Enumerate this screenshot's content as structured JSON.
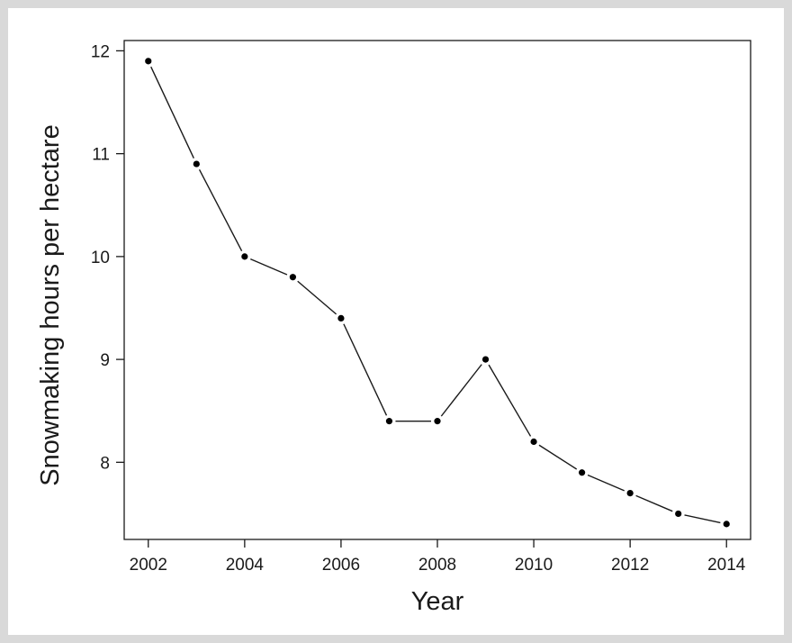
{
  "chart_data": {
    "type": "line",
    "title": "",
    "xlabel": "Year",
    "ylabel": "Snowmaking hours per hectare",
    "xlim": [
      2001.5,
      2014.5
    ],
    "ylim": [
      7.25,
      12.1
    ],
    "x_ticks": [
      2002,
      2004,
      2006,
      2008,
      2010,
      2012,
      2014
    ],
    "y_ticks": [
      8,
      9,
      10,
      11,
      12
    ],
    "grid": false,
    "legend": "none",
    "series": [
      {
        "x": [
          2002,
          2003,
          2004,
          2005,
          2006,
          2007,
          2008,
          2009,
          2010,
          2011,
          2012,
          2013,
          2014
        ],
        "y": [
          11.9,
          10.9,
          10.0,
          9.8,
          9.4,
          8.4,
          8.4,
          9.0,
          8.2,
          7.9,
          7.7,
          7.5,
          7.4
        ]
      }
    ],
    "line_color": "#1a1a1a",
    "marker_color": "#000000"
  }
}
